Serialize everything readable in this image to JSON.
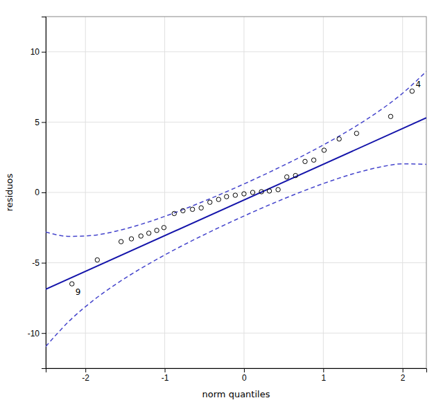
{
  "chart_data": {
    "type": "scatter",
    "xlabel": "norm quantiles",
    "ylabel": "residuos",
    "xlim": [
      -2.5,
      2.3
    ],
    "ylim": [
      -12.5,
      12.5
    ],
    "xticks": [
      -2,
      -1,
      0,
      1,
      2
    ],
    "yticks": [
      -10,
      -5,
      0,
      5,
      10
    ],
    "grid": true,
    "series": [
      {
        "type": "scatter",
        "color": "black",
        "marker": "circle",
        "x": [
          -2.17,
          -1.85,
          -1.55,
          -1.42,
          -1.3,
          -1.2,
          -1.1,
          -1.01,
          -0.88,
          -0.77,
          -0.65,
          -0.54,
          -0.43,
          -0.32,
          -0.22,
          -0.11,
          0.0,
          0.11,
          0.22,
          0.32,
          0.43,
          0.54,
          0.65,
          0.77,
          0.88,
          1.01,
          1.2,
          1.42,
          1.85,
          2.12
        ],
        "values": [
          -6.5,
          -4.8,
          -3.5,
          -3.3,
          -3.1,
          -2.9,
          -2.7,
          -2.5,
          -1.5,
          -1.3,
          -1.2,
          -1.1,
          -0.7,
          -0.5,
          -0.3,
          -0.2,
          -0.1,
          0.0,
          0.05,
          0.1,
          0.2,
          1.1,
          1.2,
          2.2,
          2.3,
          3.0,
          3.8,
          4.2,
          5.4,
          7.2
        ]
      },
      {
        "type": "line",
        "color": "#1414aa",
        "line_style": "solid",
        "x": [
          -2.5,
          2.3
        ],
        "values": [
          -6.88489,
          5.302099
        ]
      },
      {
        "type": "line",
        "color": "#4444cc",
        "line_style": "dashed",
        "x": [
          -2.5,
          -2.2,
          -1.9,
          -1.6,
          -1.3,
          -1.0,
          -0.7,
          -0.4,
          -0.1,
          0.2,
          0.5,
          0.8,
          1.1,
          1.4,
          1.7,
          2.0,
          2.3
        ],
        "values": [
          -2.813003,
          -3.124406,
          -3.049028,
          -2.735661,
          -2.270494,
          -1.704624,
          -1.068638,
          -0.380645,
          0.349375,
          1.117308,
          1.923954,
          2.77522,
          3.683465,
          4.670348,
          5.772123,
          7.049512,
          8.605671
        ]
      },
      {
        "type": "line",
        "color": "#4444cc",
        "line_style": "dashed",
        "x": [
          -2.5,
          -2.2,
          -1.9,
          -1.6,
          -1.3,
          -1.0,
          -0.7,
          -0.4,
          -0.1,
          0.2,
          0.5,
          0.8,
          1.1,
          1.4,
          1.7,
          2.0,
          2.3
        ],
        "values": [
          -10.956777,
          -9.122,
          -7.674004,
          -6.463999,
          -5.405792,
          -4.448288,
          -3.5609,
          -2.725519,
          -1.932167,
          -1.176726,
          -0.459998,
          0.21211,
          0.827239,
          1.363728,
          1.785327,
          2.031312,
          1.998527
        ]
      }
    ],
    "annotations": [
      {
        "text": "4",
        "x": 2.12,
        "y": 7.2
      },
      {
        "text": "9",
        "x": -2.17,
        "y": -6.5
      }
    ]
  }
}
